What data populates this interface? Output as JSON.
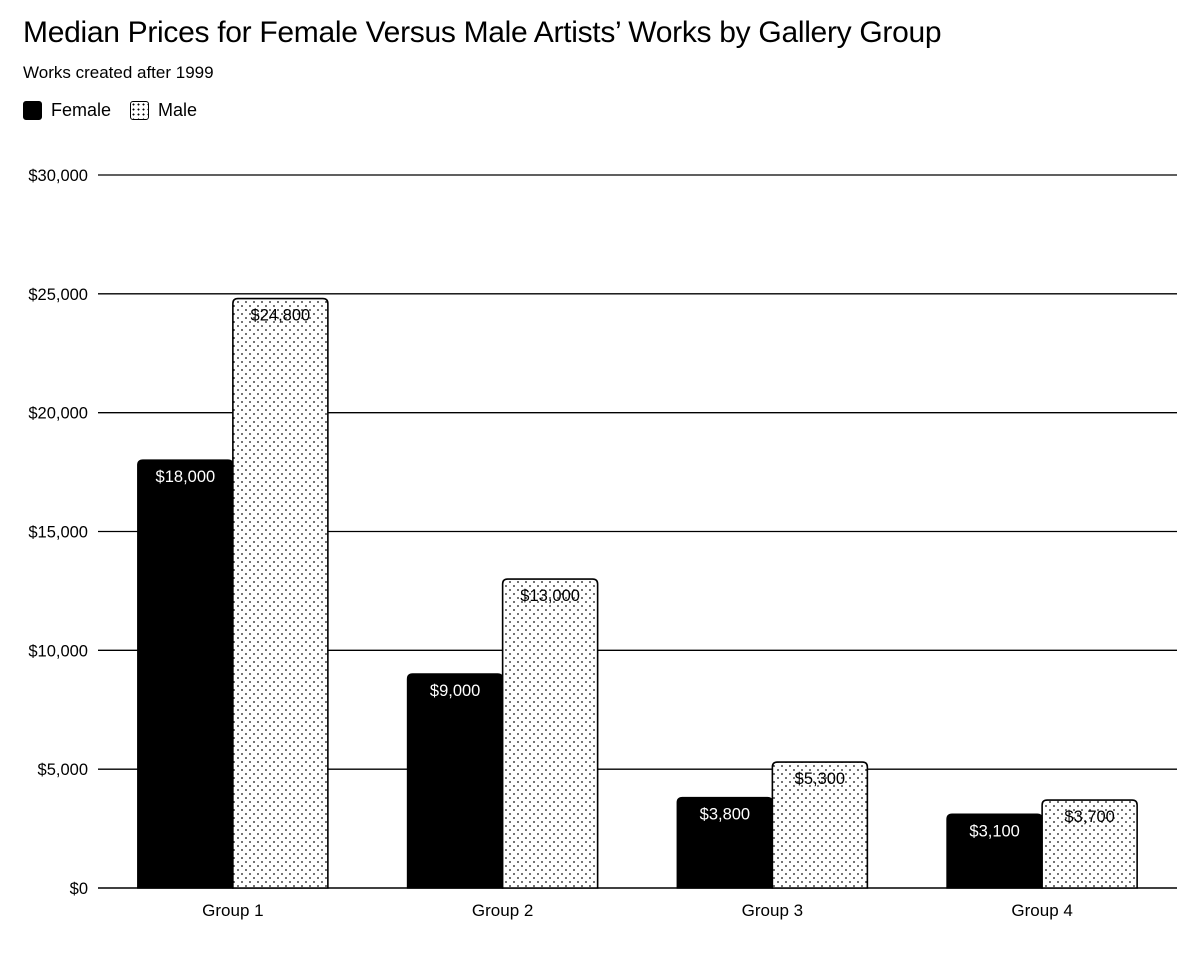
{
  "chart_data": {
    "type": "bar",
    "title": "Median Prices for Female Versus Male Artists’ Works by Gallery Group",
    "subtitle": "Works created after 1999",
    "categories": [
      "Group 1",
      "Group 2",
      "Group 3",
      "Group 4"
    ],
    "series": [
      {
        "name": "Female",
        "values": [
          18000,
          9000,
          3800,
          3100
        ],
        "labels": [
          "$18,000",
          "$9,000",
          "$3,800",
          "$3,100"
        ],
        "color": "#000000"
      },
      {
        "name": "Male",
        "values": [
          24800,
          13000,
          5300,
          3700
        ],
        "labels": [
          "$24,800",
          "$13,000",
          "$5,300",
          "$3,700"
        ],
        "color": "#ffffff"
      }
    ],
    "ylim": [
      0,
      30000
    ],
    "yticks": [
      0,
      5000,
      10000,
      15000,
      20000,
      25000,
      30000
    ],
    "ytick_labels": [
      "$0",
      "$5,000",
      "$10,000",
      "$15,000",
      "$20,000",
      "$25,000",
      "$30,000"
    ],
    "xlabel": "",
    "ylabel": "",
    "grid": true,
    "legend_position": "top-left"
  }
}
